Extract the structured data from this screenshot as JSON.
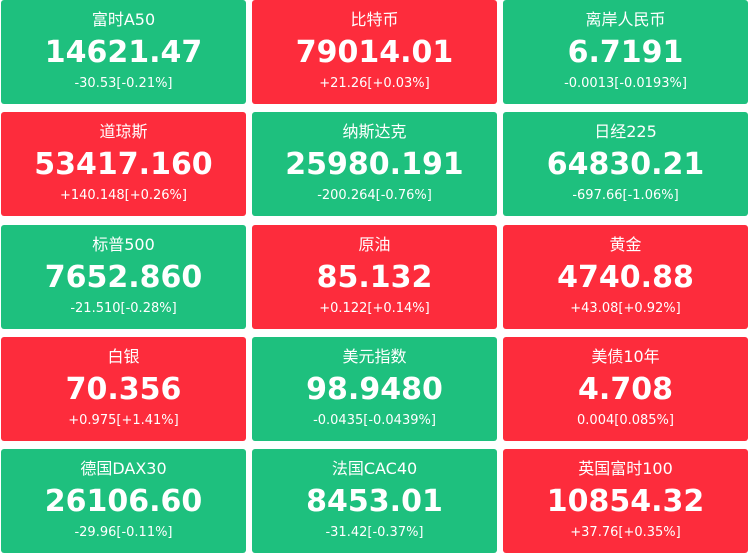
{
  "tiles": [
    {
      "name": "富时A50",
      "price": "14621.47",
      "change": "-30.53[-0.21%]",
      "color": "#1ec07e"
    },
    {
      "name": "比特币",
      "price": "79014.01",
      "change": "+21.26[+0.03%]",
      "color": "#fd2c3c"
    },
    {
      "name": "离岸人民币",
      "price": "6.7191",
      "change": "-0.0013[-0.0193%]",
      "color": "#1ec07e"
    },
    {
      "name": "道琼斯",
      "price": "53417.160",
      "change": "+140.148[+0.26%]",
      "color": "#fd2c3c"
    },
    {
      "name": "纳斯达克",
      "price": "25980.191",
      "change": "-200.264[-0.76%]",
      "color": "#1ec07e"
    },
    {
      "name": "日经225",
      "price": "64830.21",
      "change": "-697.66[-1.06%]",
      "color": "#1ec07e"
    },
    {
      "name": "标普500",
      "price": "7652.860",
      "change": "-21.510[-0.28%]",
      "color": "#1ec07e"
    },
    {
      "name": "原油",
      "price": "85.132",
      "change": "+0.122[+0.14%]",
      "color": "#fd2c3c"
    },
    {
      "name": "黄金",
      "price": "4740.88",
      "change": "+43.08[+0.92%]",
      "color": "#fd2c3c"
    },
    {
      "name": "白银",
      "price": "70.356",
      "change": "+0.975[+1.41%]",
      "color": "#fd2c3c"
    },
    {
      "name": "美元指数",
      "price": "98.9480",
      "change": "-0.0435[-0.0439%]",
      "color": "#1ec07e"
    },
    {
      "name": "美债10年",
      "price": "4.708",
      "change": "0.004[0.085%]",
      "color": "#fd2c3c"
    },
    {
      "name": "德国DAX30",
      "price": "26106.60",
      "change": "-29.96[-0.11%]",
      "color": "#1ec07e"
    },
    {
      "name": "法国CAC40",
      "price": "8453.01",
      "change": "-31.42[-0.37%]",
      "color": "#1ec07e"
    },
    {
      "name": "英国富时100",
      "price": "10854.32",
      "change": "+37.76[+0.35%]",
      "color": "#fd2c3c"
    }
  ]
}
